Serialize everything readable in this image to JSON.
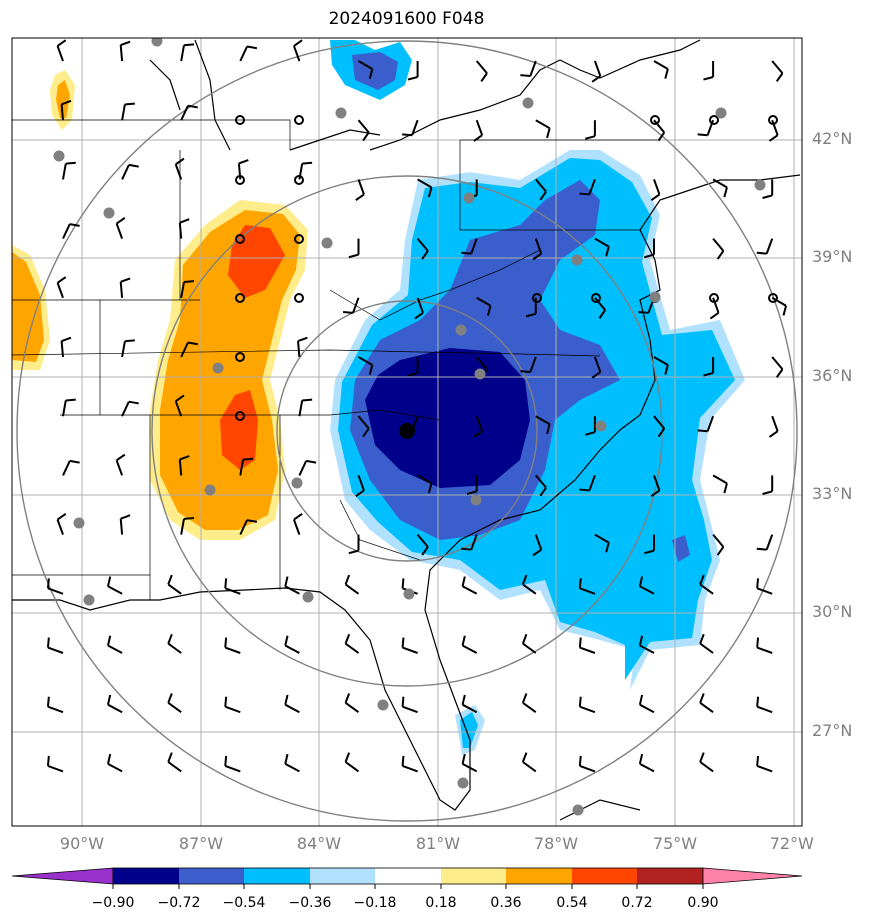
{
  "title": "2024091600 F048",
  "map": {
    "lat_labels": [
      "42°N",
      "39°N",
      "36°N",
      "33°N",
      "30°N",
      "27°N"
    ],
    "lon_labels": [
      "90°W",
      "87°W",
      "84°W",
      "81°W",
      "78°W",
      "75°W",
      "72°W"
    ],
    "extent": {
      "lon": [
        -91.5,
        -71.5
      ],
      "lat": [
        24.5,
        44.5
      ]
    },
    "center_marker": {
      "lon": -81.6,
      "lat": 34.6
    },
    "range_ring_radii_deg": [
      4,
      8,
      12
    ]
  },
  "colorbar": {
    "labels": [
      "−0.90",
      "−0.72",
      "−0.54",
      "−0.36",
      "−0.18",
      "0.18",
      "0.36",
      "0.54",
      "0.72",
      "0.90"
    ],
    "colors": [
      "#9932cc",
      "#00008b",
      "#3a5fcd",
      "#00bfff",
      "#b0e2ff",
      "#ffffff",
      "#ffec8b",
      "#ffa500",
      "#ff4500",
      "#b22222",
      "#ff82ab"
    ]
  },
  "colors": {
    "dark_blue": "#00008b",
    "royal_blue": "#3a5fcd",
    "deep_sky_blue": "#00bfff",
    "light_sky_blue": "#b0e2ff",
    "khaki": "#ffec8b",
    "orange": "#ffa500",
    "orange_red": "#ff4500",
    "gray": "#808080"
  }
}
